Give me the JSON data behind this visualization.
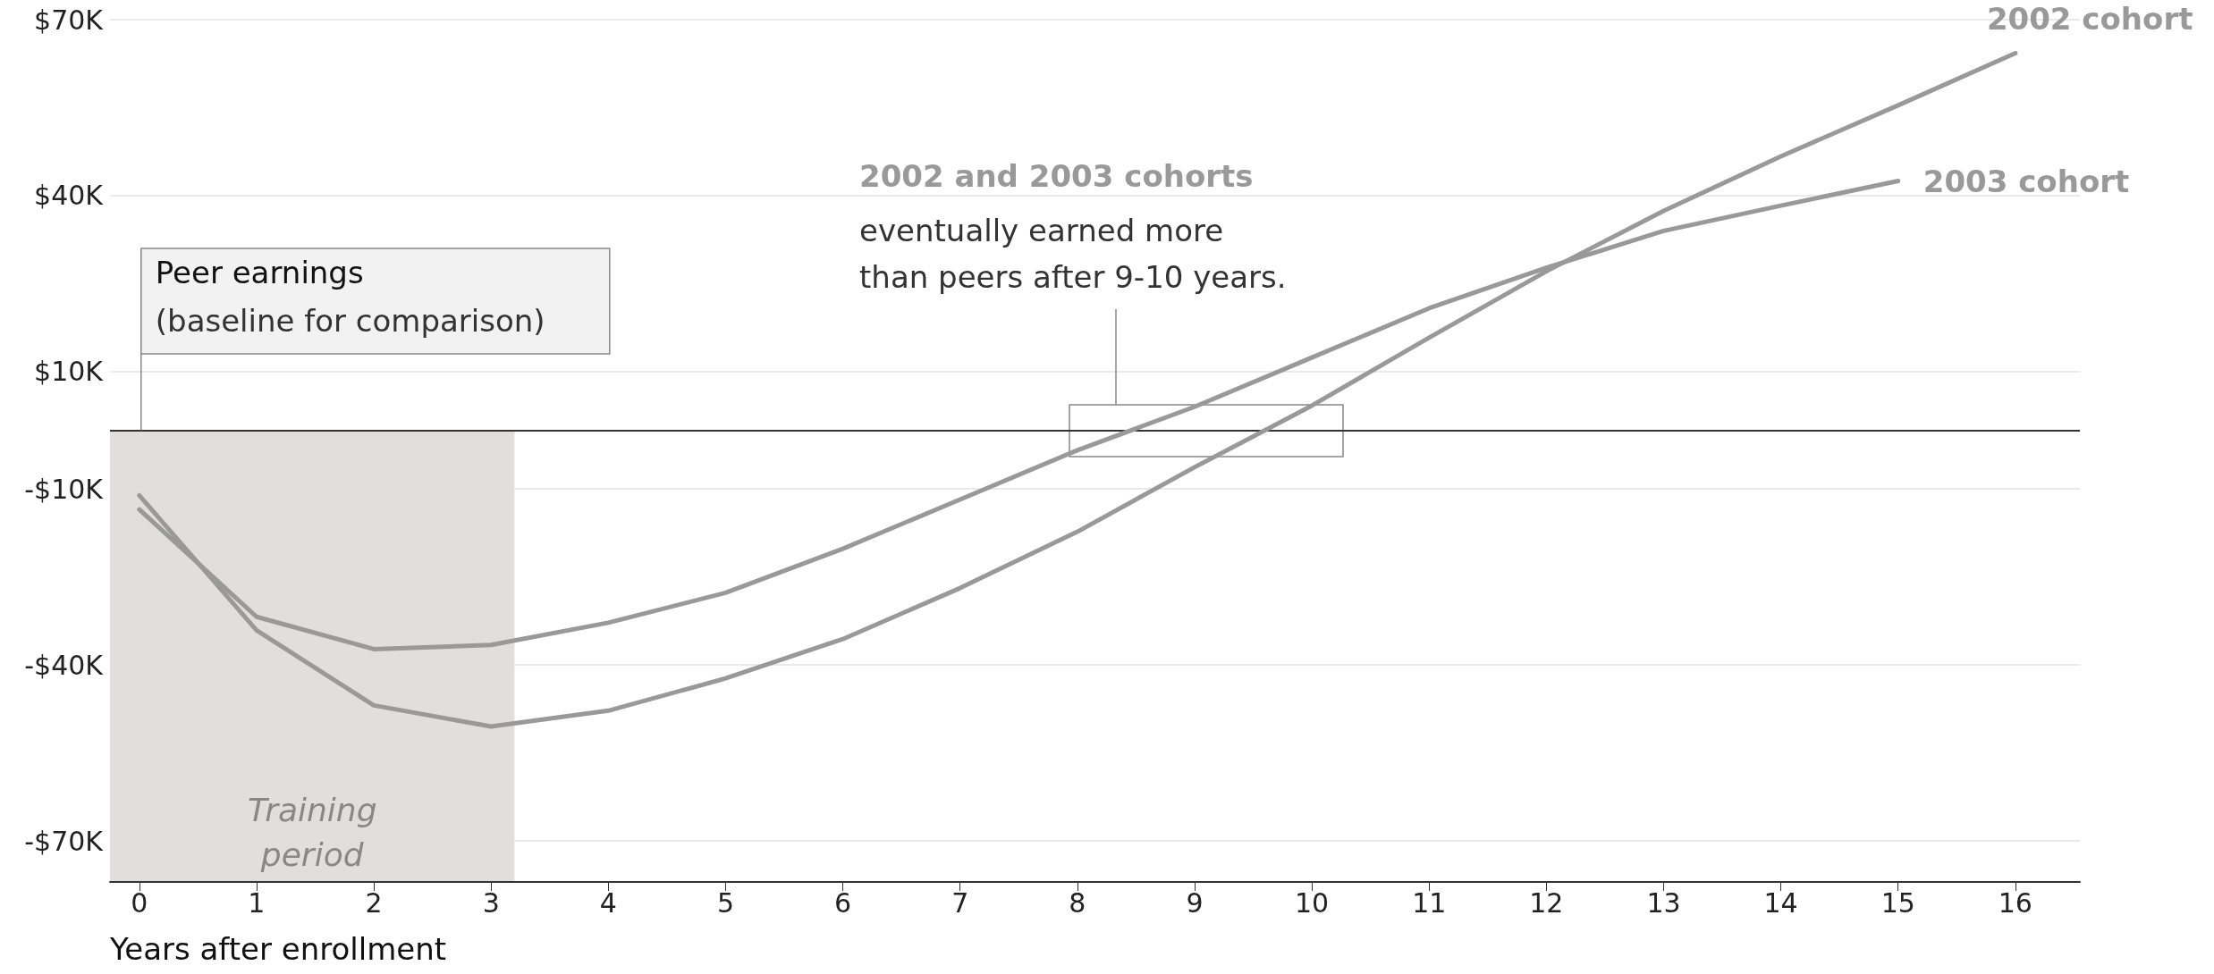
{
  "chart_data": {
    "type": "line",
    "xlabel": "Years after enrollment",
    "x": [
      0,
      1,
      2,
      3,
      4,
      5,
      6,
      7,
      8,
      9,
      10,
      11,
      12,
      13,
      14,
      15,
      16
    ],
    "series": [
      {
        "name": "2002 cohort",
        "color": "#999999",
        "values": [
          -11.1,
          -34.1,
          -46.9,
          -50.5,
          -47.8,
          -42.3,
          -35.6,
          -26.9,
          -17.3,
          -6.3,
          4.2,
          15.8,
          27.1,
          37.4,
          46.7,
          55.4,
          64.3
        ]
      },
      {
        "name": "2003 cohort",
        "color": "#999999",
        "values": [
          -13.5,
          -31.8,
          -37.3,
          -36.6,
          -32.8,
          -27.7,
          -20.2,
          -11.8,
          -3.4,
          4.0,
          12.4,
          20.8,
          27.7,
          34.0,
          38.3,
          42.5,
          null
        ]
      }
    ],
    "xlim": [
      -0.25,
      16.55
    ],
    "xticks": [
      0,
      1,
      2,
      3,
      4,
      5,
      6,
      7,
      8,
      9,
      10,
      11,
      12,
      13,
      14,
      15,
      16
    ],
    "ylim": [
      -77,
      70
    ],
    "yticks": [
      {
        "value": 70,
        "label": "$70K"
      },
      {
        "value": 40,
        "label": "$40K"
      },
      {
        "value": 10,
        "label": "$10K"
      },
      {
        "value": -10,
        "label": "-$10K"
      },
      {
        "value": -40,
        "label": "-$40K"
      },
      {
        "value": -70,
        "label": "-$70K"
      }
    ],
    "grid": "y",
    "legend": false,
    "marker": "none",
    "line_style": "solid",
    "ref_lines": [
      {
        "axis": "y",
        "value": 0,
        "color": "#333333"
      }
    ],
    "bands": [
      {
        "axis": "x",
        "from": -0.25,
        "to": 3.2,
        "label": "Training\nperiod",
        "color": "#e0dfdd"
      }
    ],
    "annotations": [
      {
        "text": "Peer earnings\n(baseline for comparison)",
        "x": 0,
        "y": 0
      },
      "2002 and 2003 cohorts",
      "eventually earned more\nthan peers after 9-10 years."
    ]
  }
}
